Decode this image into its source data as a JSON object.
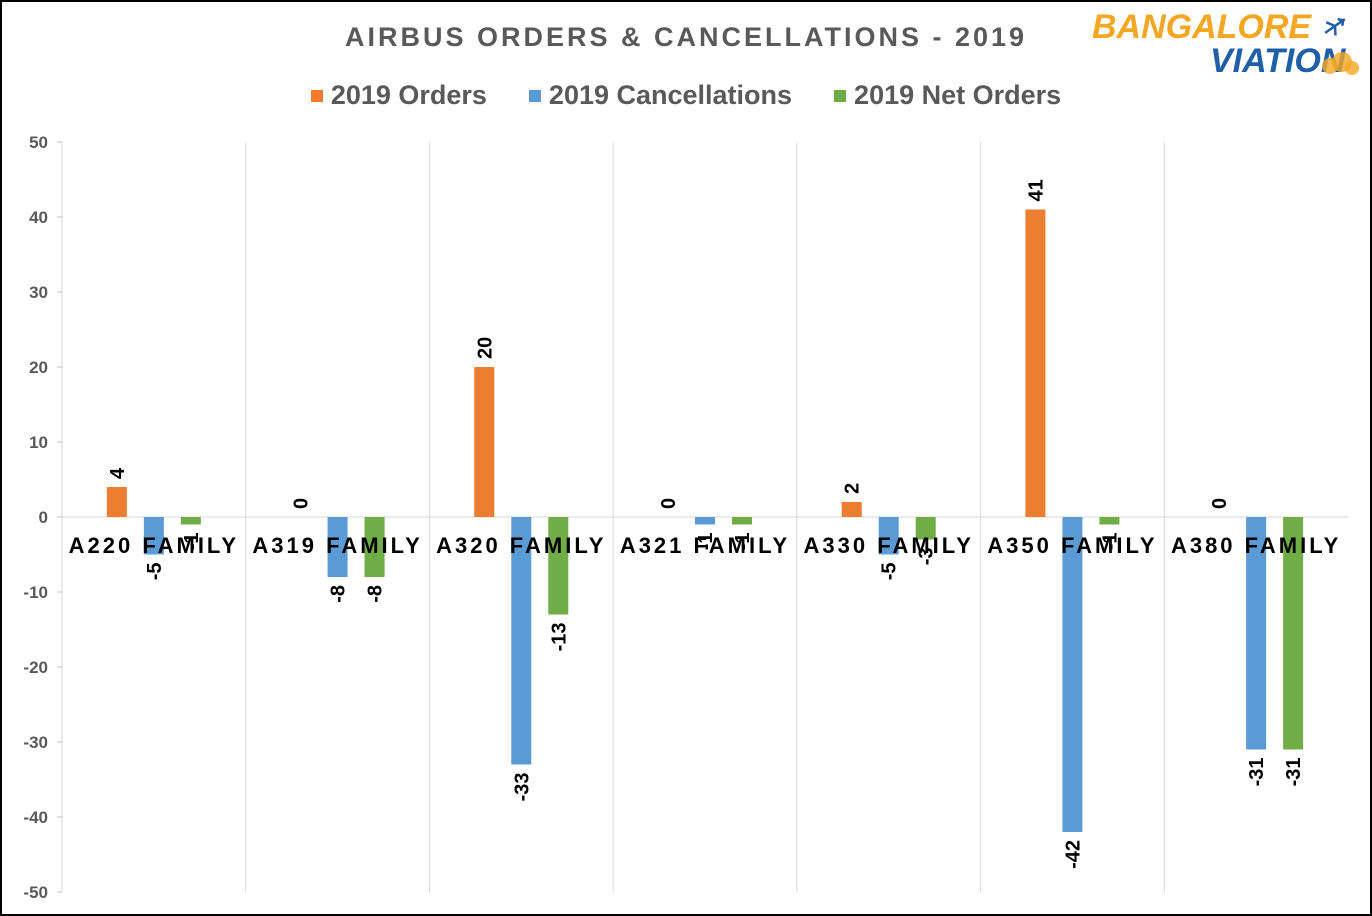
{
  "chart_data": {
    "type": "bar",
    "title": "AIRBUS ORDERS & CANCELLATIONS - 2019",
    "categories": [
      "A220 FAMILY",
      "A319 FAMILY",
      "A320 FAMILY",
      "A321 FAMILY",
      "A330 FAMILY",
      "A350 FAMILY",
      "A380 FAMILY"
    ],
    "series": [
      {
        "name": "2019 Orders",
        "color": "#ED7D31",
        "values": [
          4,
          0,
          20,
          0,
          2,
          41,
          0
        ]
      },
      {
        "name": "2019 Cancellations",
        "color": "#5B9BD5",
        "values": [
          -5,
          -8,
          -33,
          -1,
          -5,
          -42,
          -31
        ]
      },
      {
        "name": "2019 Net Orders",
        "color": "#70AD47",
        "values": [
          -1,
          -8,
          -13,
          -1,
          -3,
          -1,
          -31
        ]
      }
    ],
    "ylim": [
      -50,
      50
    ],
    "yticks": [
      -50,
      -40,
      -30,
      -20,
      -10,
      0,
      10,
      20,
      30,
      40,
      50
    ],
    "grid": "vertical-category-separators",
    "legend": "top-center"
  },
  "logo": {
    "line1": "BANGALORE",
    "line2": "VIATION",
    "color_blue": "#1F5FA8",
    "color_orange": "#F5A623"
  }
}
